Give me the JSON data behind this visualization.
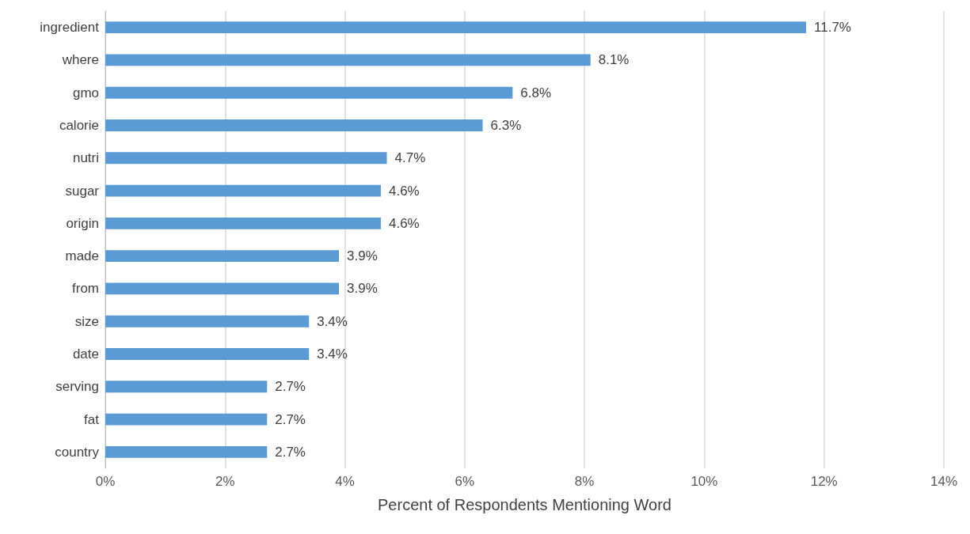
{
  "chart_data": {
    "type": "bar",
    "orientation": "horizontal",
    "xlabel": "Percent of Respondents Mentioning Word",
    "categories": [
      "ingredient",
      "where",
      "gmo",
      "calorie",
      "nutri",
      "sugar",
      "origin",
      "made",
      "from",
      "size",
      "date",
      "serving",
      "fat",
      "country"
    ],
    "values": [
      11.7,
      8.1,
      6.8,
      6.3,
      4.7,
      4.6,
      4.6,
      3.9,
      3.9,
      3.4,
      3.4,
      2.7,
      2.7,
      2.7
    ],
    "value_labels": [
      "11.7%",
      "8.1%",
      "6.8%",
      "6.3%",
      "4.7%",
      "4.6%",
      "4.6%",
      "3.9%",
      "3.9%",
      "3.4%",
      "3.4%",
      "2.7%",
      "2.7%",
      "2.7%"
    ],
    "color": "#5b9bd5",
    "xlim": [
      0,
      14
    ],
    "xticks": [
      {
        "value": 0,
        "label": "0%"
      },
      {
        "value": 2,
        "label": "2%"
      },
      {
        "value": 4,
        "label": "4%"
      },
      {
        "value": 6,
        "label": "6%"
      },
      {
        "value": 8,
        "label": "8%"
      },
      {
        "value": 10,
        "label": "10%"
      },
      {
        "value": 12,
        "label": "12%"
      },
      {
        "value": 14,
        "label": "14%"
      }
    ],
    "grid": "x"
  }
}
